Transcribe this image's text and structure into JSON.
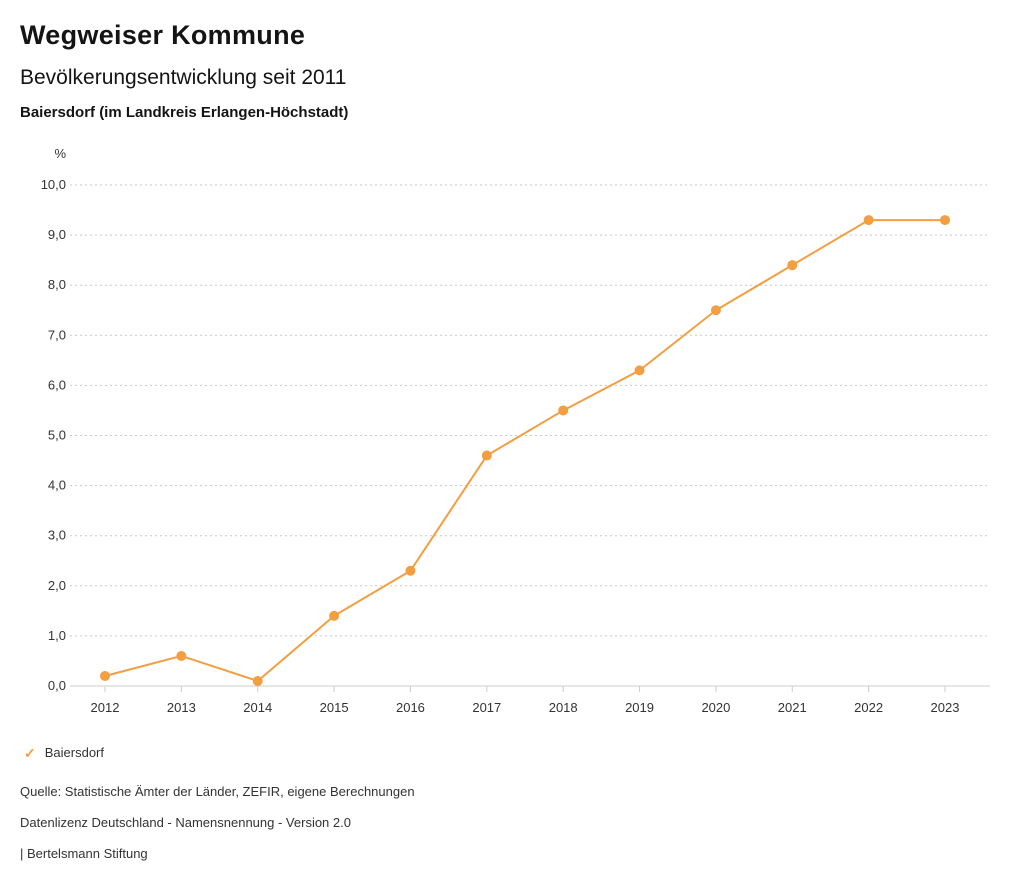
{
  "header": {
    "title": "Wegweiser Kommune",
    "subtitle": "Bevölkerungsentwicklung seit 2011",
    "region_title": "Baiersdorf (im Landkreis Erlangen-Höchstadt)"
  },
  "chart_data": {
    "type": "line",
    "title": "Bevölkerungsentwicklung seit 2011",
    "subtitle": "Baiersdorf (im Landkreis Erlangen-Höchstadt)",
    "unit_label": "%",
    "xlabel": "",
    "ylabel": "%",
    "categories": [
      "2012",
      "2013",
      "2014",
      "2015",
      "2016",
      "2017",
      "2018",
      "2019",
      "2020",
      "2021",
      "2022",
      "2023"
    ],
    "series": [
      {
        "name": "Baiersdorf",
        "color": "#F49E42",
        "values": [
          0.2,
          0.6,
          0.1,
          1.4,
          2.3,
          4.6,
          5.5,
          6.3,
          7.5,
          8.4,
          9.3,
          9.3
        ]
      }
    ],
    "ylim": [
      0,
      10
    ],
    "yticks": [
      {
        "value": 0,
        "label": "0,0"
      },
      {
        "value": 1,
        "label": "1,0"
      },
      {
        "value": 2,
        "label": "2,0"
      },
      {
        "value": 3,
        "label": "3,0"
      },
      {
        "value": 4,
        "label": "4,0"
      },
      {
        "value": 5,
        "label": "5,0"
      },
      {
        "value": 6,
        "label": "6,0"
      },
      {
        "value": 7,
        "label": "7,0"
      },
      {
        "value": 8,
        "label": "8,0"
      },
      {
        "value": 9,
        "label": "9,0"
      },
      {
        "value": 10,
        "label": "10,0"
      }
    ],
    "grid": "horizontal-dotted",
    "grid_color": "#c9c9c9",
    "axis_color": "#cccccc",
    "tick_label_color": "#333333",
    "legend_position": "bottom-left"
  },
  "legend": {
    "items": [
      {
        "label": "Baiersdorf",
        "color": "#F49E42",
        "checked": true,
        "check_icon": "✓"
      }
    ]
  },
  "footer": {
    "source": "Quelle: Statistische Ämter der Länder, ZEFIR, eigene Berechnungen",
    "license": "Datenlizenz Deutschland - Namensnennung - Version 2.0",
    "attribution": "| Bertelsmann Stiftung"
  }
}
